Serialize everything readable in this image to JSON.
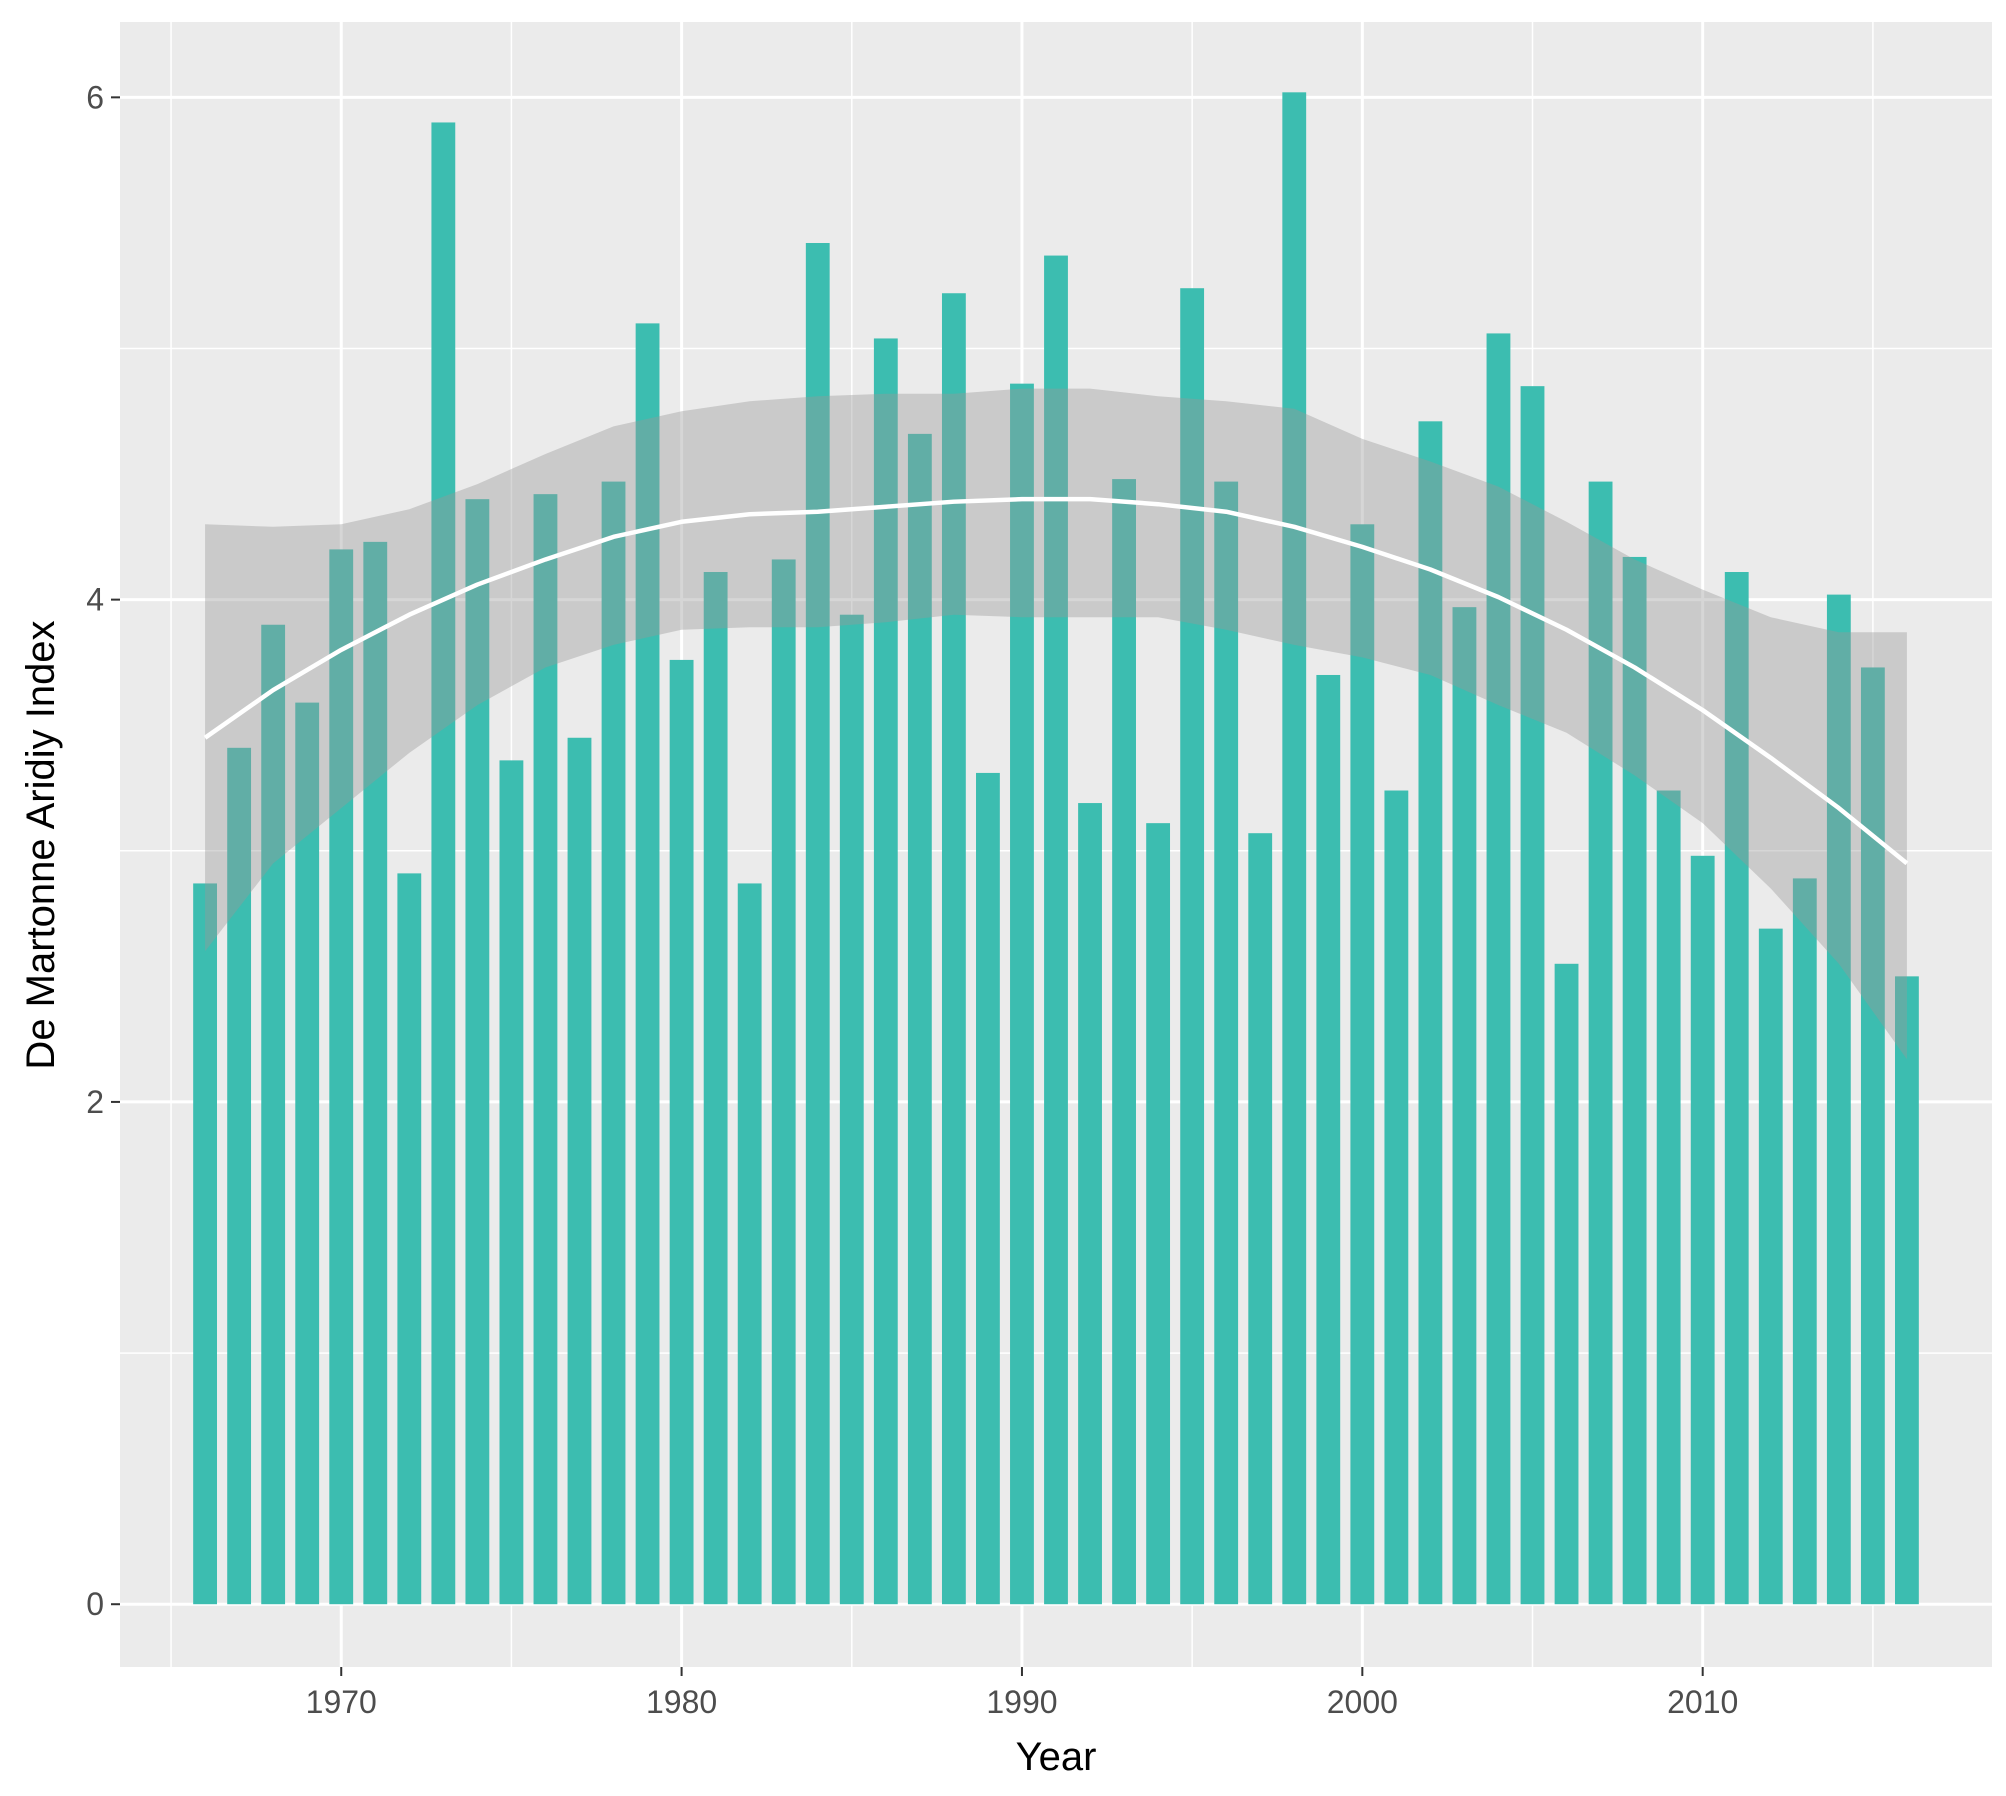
{
  "chart_data": {
    "type": "bar",
    "xlabel": "Year",
    "ylabel": "De Martonne Aridiy Index",
    "xlim": [
      1963.5,
      2018.5
    ],
    "ylim": [
      -0.25,
      6.3
    ],
    "x_ticks": [
      1970,
      1980,
      1990,
      2000,
      2010
    ],
    "x_tick_labels": [
      "1970",
      "1980",
      "1990",
      "2000",
      "2010"
    ],
    "y_ticks": [
      0,
      2,
      4,
      6
    ],
    "y_tick_labels": [
      "0",
      "2",
      "4",
      "6"
    ],
    "grid": true,
    "legend": "none",
    "x": [
      1966,
      1967,
      1968,
      1969,
      1970,
      1971,
      1972,
      1973,
      1974,
      1975,
      1976,
      1977,
      1978,
      1979,
      1980,
      1981,
      1982,
      1983,
      1984,
      1985,
      1986,
      1987,
      1988,
      1989,
      1990,
      1991,
      1992,
      1993,
      1994,
      1995,
      1996,
      1997,
      1998,
      1999,
      2000,
      2001,
      2002,
      2003,
      2004,
      2005,
      2006,
      2007,
      2008,
      2009,
      2010,
      2011,
      2012,
      2013,
      2014,
      2015,
      2016
    ],
    "values": [
      2.87,
      3.41,
      3.9,
      3.59,
      4.2,
      4.23,
      2.91,
      5.9,
      4.4,
      3.36,
      4.42,
      3.45,
      4.47,
      5.1,
      3.76,
      4.11,
      2.87,
      4.16,
      5.42,
      3.94,
      5.04,
      4.66,
      5.22,
      3.31,
      4.86,
      5.37,
      3.19,
      4.48,
      3.11,
      5.24,
      4.47,
      3.07,
      6.02,
      3.7,
      4.3,
      3.24,
      4.71,
      3.97,
      5.06,
      4.85,
      2.55,
      4.47,
      4.17,
      3.24,
      2.98,
      4.11,
      2.69,
      2.89,
      4.02,
      3.73,
      2.5
    ],
    "bar_color": "#3cbdb0",
    "smooth_fit": {
      "method": "loess",
      "color": "#ffffff",
      "ribbon_color": "#999999",
      "x": [
        1966,
        1968,
        1970,
        1972,
        1974,
        1976,
        1978,
        1980,
        1982,
        1984,
        1986,
        1988,
        1990,
        1992,
        1994,
        1996,
        1998,
        2000,
        2002,
        2004,
        2006,
        2008,
        2010,
        2012,
        2014,
        2016
      ],
      "fit": [
        3.45,
        3.64,
        3.8,
        3.94,
        4.06,
        4.16,
        4.25,
        4.31,
        4.34,
        4.35,
        4.37,
        4.39,
        4.4,
        4.4,
        4.38,
        4.35,
        4.29,
        4.21,
        4.12,
        4.01,
        3.88,
        3.73,
        3.56,
        3.37,
        3.17,
        2.95
      ],
      "lower": [
        2.6,
        2.95,
        3.17,
        3.39,
        3.58,
        3.73,
        3.82,
        3.88,
        3.89,
        3.89,
        3.91,
        3.94,
        3.93,
        3.93,
        3.93,
        3.88,
        3.82,
        3.77,
        3.7,
        3.58,
        3.47,
        3.3,
        3.11,
        2.85,
        2.55,
        2.17
      ],
      "upper": [
        4.3,
        4.29,
        4.3,
        4.36,
        4.46,
        4.58,
        4.69,
        4.75,
        4.79,
        4.81,
        4.82,
        4.82,
        4.84,
        4.84,
        4.81,
        4.79,
        4.76,
        4.64,
        4.55,
        4.45,
        4.31,
        4.16,
        4.04,
        3.93,
        3.87,
        3.87
      ]
    }
  }
}
